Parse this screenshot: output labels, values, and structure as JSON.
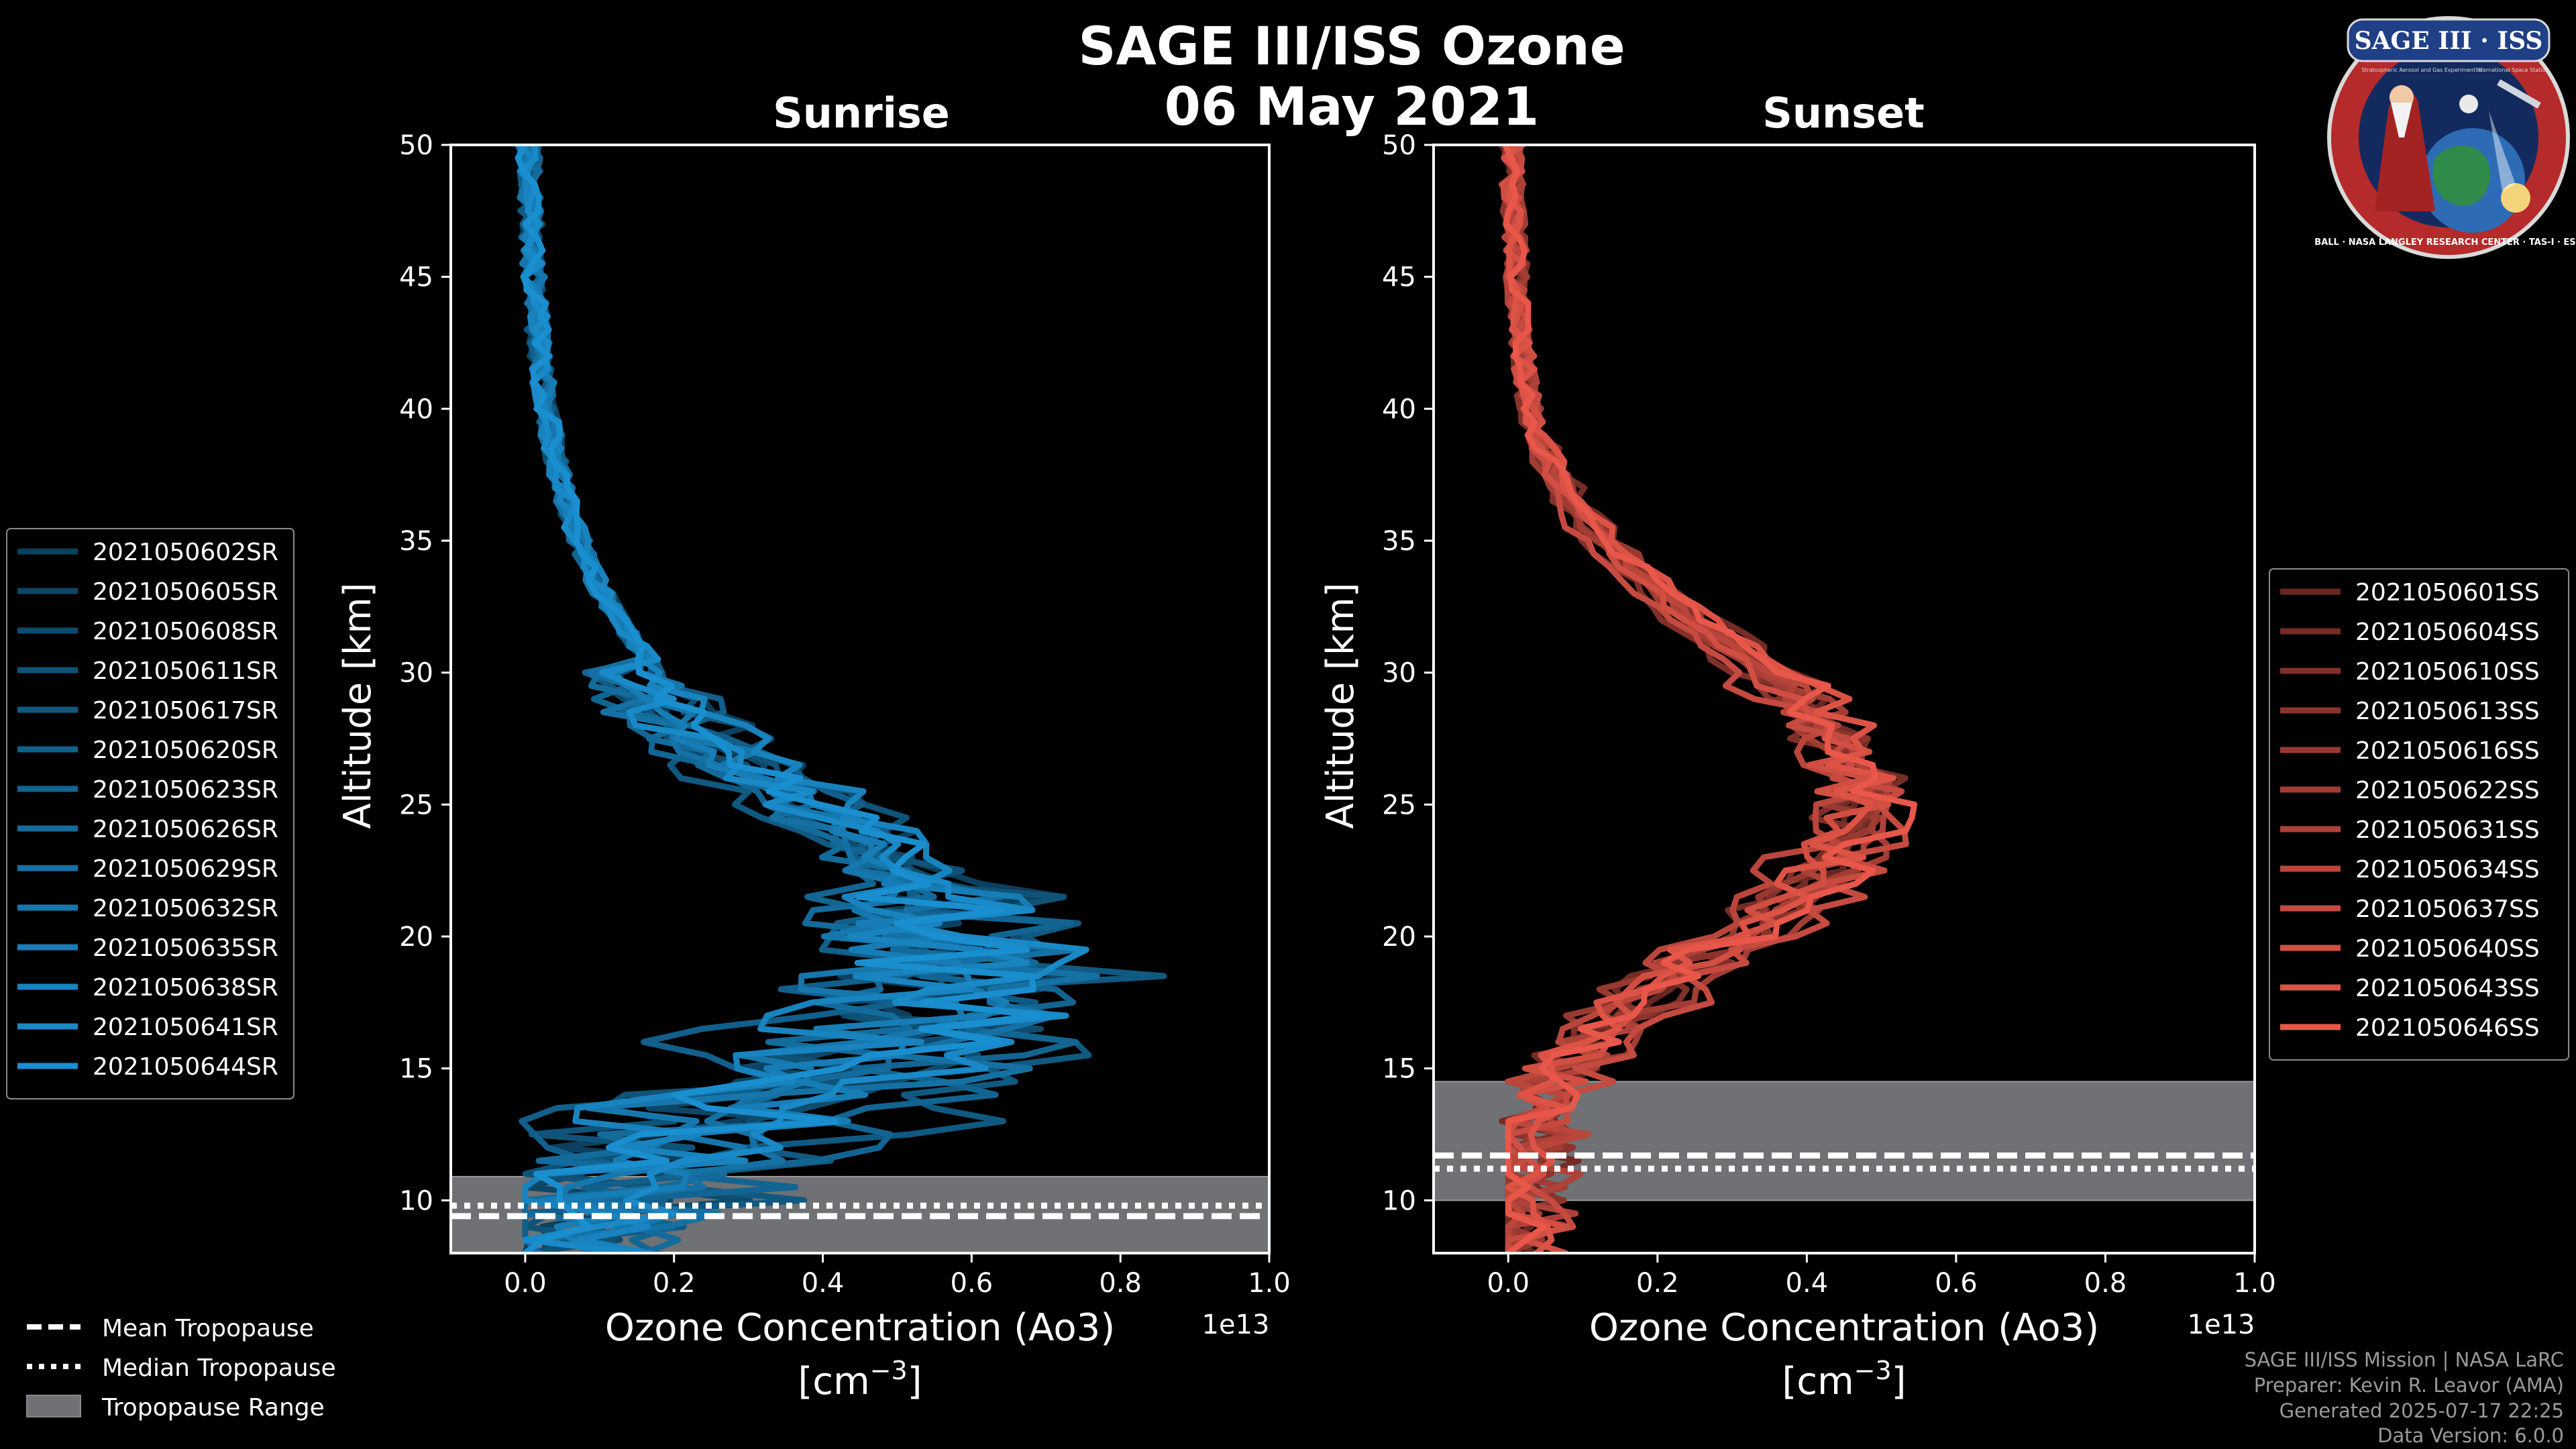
{
  "page": {
    "title": "SAGE III/ISS Ozone",
    "date": "06 May 2021"
  },
  "logo": {
    "title": "SAGE III · ISS",
    "subtitle_left": "Stratospheric Aerosol and Gas Experiment III",
    "subtitle_right": "International Space Station",
    "ring_text": "BALL · NASA LANGLEY RESEARCH CENTER · TAS-I · ESA"
  },
  "footer": {
    "line1": "SAGE III/ISS Mission | NASA LaRC",
    "line2": "Preparer: Kevin R. Leavor (AMA)",
    "line3": "Generated 2025-07-17 22:25",
    "line4": "Data Version: 6.0.0"
  },
  "bottom_legend": {
    "mean": "Mean Tropopause",
    "median": "Median Tropopause",
    "range": "Tropopause Range"
  },
  "chart_data": [
    {
      "type": "line",
      "title": "Sunrise",
      "xlabel": "Ozone Concentration (Ao3)",
      "xlabel_unit_base": "[cm",
      "xlabel_unit_exp": "−3",
      "xlabel_unit_close": "]",
      "ylabel": "Altitude [km]",
      "x_multiplier": "1e13",
      "xlim": [
        -0.1,
        1.0
      ],
      "ylim": [
        8,
        50
      ],
      "xticks": [
        "0.0",
        "0.2",
        "0.4",
        "0.6",
        "0.8",
        "1.0"
      ],
      "yticks": [
        "10",
        "15",
        "20",
        "25",
        "30",
        "35",
        "40",
        "45",
        "50"
      ],
      "tropopause": {
        "mean": 9.4,
        "median": 9.8,
        "range": [
          8.0,
          10.9
        ]
      },
      "series_color": "#1a8fd0",
      "legend_position": "left",
      "series": [
        {
          "name": "2021050602SR",
          "peak_x": 0.6,
          "peak_alt": 20.0,
          "seed": 3
        },
        {
          "name": "2021050605SR",
          "peak_x": 0.56,
          "peak_alt": 19.5,
          "seed": 7
        },
        {
          "name": "2021050608SR",
          "peak_x": 0.63,
          "peak_alt": 18.5,
          "seed": 11
        },
        {
          "name": "2021050611SR",
          "peak_x": 0.58,
          "peak_alt": 20.5,
          "seed": 13
        },
        {
          "name": "2021050617SR",
          "peak_x": 0.72,
          "peak_alt": 17.0,
          "seed": 17
        },
        {
          "name": "2021050620SR",
          "peak_x": 0.5,
          "peak_alt": 21.0,
          "seed": 19
        },
        {
          "name": "2021050623SR",
          "peak_x": 0.66,
          "peak_alt": 17.5,
          "seed": 23
        },
        {
          "name": "2021050626SR",
          "peak_x": 0.55,
          "peak_alt": 19.0,
          "seed": 29
        },
        {
          "name": "2021050629SR",
          "peak_x": 0.62,
          "peak_alt": 18.0,
          "seed": 31
        },
        {
          "name": "2021050632SR",
          "peak_x": 0.52,
          "peak_alt": 20.0,
          "seed": 37
        },
        {
          "name": "2021050635SR",
          "peak_x": 0.59,
          "peak_alt": 19.0,
          "seed": 41
        },
        {
          "name": "2021050638SR",
          "peak_x": 0.57,
          "peak_alt": 20.5,
          "seed": 43
        },
        {
          "name": "2021050641SR",
          "peak_x": 0.64,
          "peak_alt": 18.5,
          "seed": 47
        },
        {
          "name": "2021050644SR",
          "peak_x": 0.6,
          "peak_alt": 19.5,
          "seed": 53
        }
      ]
    },
    {
      "type": "line",
      "title": "Sunset",
      "xlabel": "Ozone Concentration (Ao3)",
      "xlabel_unit_base": "[cm",
      "xlabel_unit_exp": "−3",
      "xlabel_unit_close": "]",
      "ylabel": "Altitude [km]",
      "x_multiplier": "1e13",
      "xlim": [
        -0.1,
        1.0
      ],
      "ylim": [
        8,
        50
      ],
      "xticks": [
        "0.0",
        "0.2",
        "0.4",
        "0.6",
        "0.8",
        "1.0"
      ],
      "yticks": [
        "10",
        "15",
        "20",
        "25",
        "30",
        "35",
        "40",
        "45",
        "50"
      ],
      "tropopause": {
        "mean": 11.7,
        "median": 11.2,
        "range": [
          10.0,
          14.5
        ]
      },
      "series_color": "#e8574a",
      "legend_position": "right",
      "series": [
        {
          "name": "2021050601SS",
          "peak_x": 0.47,
          "peak_alt": 25.0,
          "seed": 5
        },
        {
          "name": "2021050604SS",
          "peak_x": 0.49,
          "peak_alt": 25.5,
          "seed": 9
        },
        {
          "name": "2021050610SS",
          "peak_x": 0.45,
          "peak_alt": 24.5,
          "seed": 15
        },
        {
          "name": "2021050613SS",
          "peak_x": 0.48,
          "peak_alt": 25.0,
          "seed": 21
        },
        {
          "name": "2021050616SS",
          "peak_x": 0.46,
          "peak_alt": 25.5,
          "seed": 27
        },
        {
          "name": "2021050622SS",
          "peak_x": 0.5,
          "peak_alt": 24.5,
          "seed": 33
        },
        {
          "name": "2021050631SS",
          "peak_x": 0.47,
          "peak_alt": 25.0,
          "seed": 39
        },
        {
          "name": "2021050634SS",
          "peak_x": 0.44,
          "peak_alt": 25.5,
          "seed": 45
        },
        {
          "name": "2021050637SS",
          "peak_x": 0.49,
          "peak_alt": 24.0,
          "seed": 51
        },
        {
          "name": "2021050640SS",
          "peak_x": 0.46,
          "peak_alt": 25.0,
          "seed": 57
        },
        {
          "name": "2021050643SS",
          "peak_x": 0.48,
          "peak_alt": 25.5,
          "seed": 61
        },
        {
          "name": "2021050646SS",
          "peak_x": 0.5,
          "peak_alt": 25.0,
          "seed": 67
        }
      ]
    }
  ]
}
